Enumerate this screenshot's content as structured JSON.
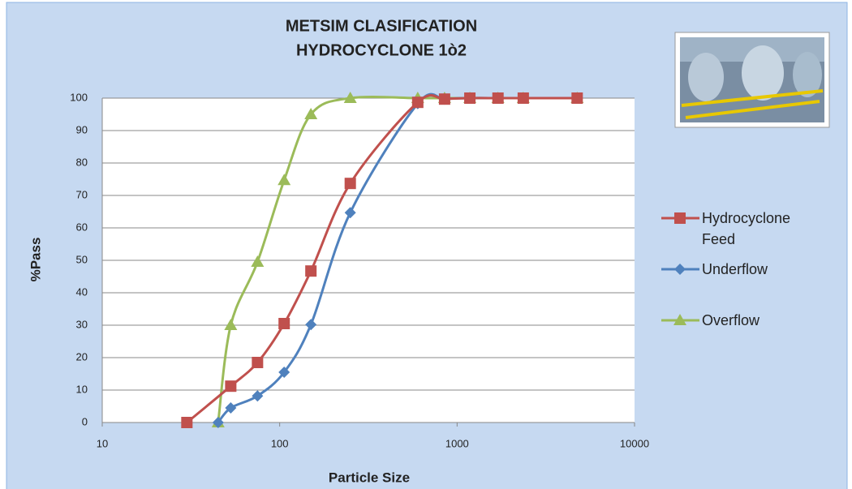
{
  "chart_data": {
    "type": "line",
    "title": "METSIM CLASIFICATION",
    "subtitle": "HYDROCYCLONE 1ò2",
    "x_label": "Particle Size",
    "y_label": "%Pass",
    "xscale": "log",
    "xlim": [
      10,
      10000
    ],
    "xticks": [
      10,
      100,
      1000,
      10000
    ],
    "ylim": [
      0,
      100
    ],
    "yticks": [
      0,
      10,
      20,
      30,
      40,
      50,
      60,
      70,
      80,
      90,
      100
    ],
    "grid": true,
    "legend": "right",
    "series": [
      {
        "name": "Hydrocyclone Feed",
        "color": "#c0504d",
        "marker": "square",
        "x": [
          30,
          53,
          75,
          106,
          150,
          250,
          600,
          850,
          1180,
          1700,
          2360,
          4750
        ],
        "values": [
          0,
          11.2,
          18.5,
          30.5,
          46.7,
          73.7,
          98.7,
          99.7,
          100,
          100,
          100,
          100
        ]
      },
      {
        "name": "Underflow",
        "color": "#4f81bd",
        "marker": "diamond",
        "x": [
          45,
          53,
          75,
          106,
          150,
          250,
          600,
          850,
          1180,
          1700,
          2360,
          4750
        ],
        "values": [
          0,
          4.5,
          8.2,
          15.5,
          30.2,
          64.7,
          98.3,
          99.7,
          100,
          100,
          100,
          100
        ]
      },
      {
        "name": "Overflow",
        "color": "#9bbb59",
        "marker": "triangle",
        "x": [
          45,
          53,
          75,
          106,
          150,
          250,
          600,
          850,
          1180,
          1700,
          2360,
          4750
        ],
        "values": [
          0,
          30,
          49.5,
          74.7,
          95,
          100,
          100,
          100,
          100,
          100,
          100,
          100
        ]
      }
    ]
  }
}
